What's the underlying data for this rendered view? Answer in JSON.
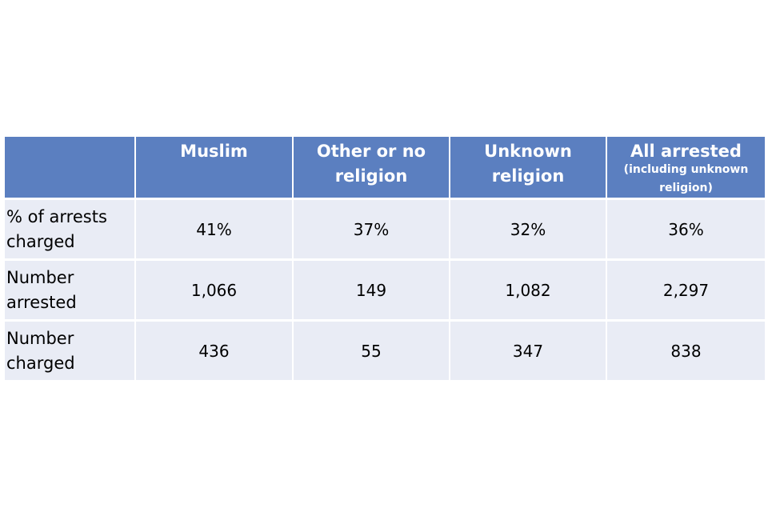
{
  "chart_data": {
    "type": "table",
    "title": "",
    "columns": [
      {
        "label": "Muslim",
        "note": ""
      },
      {
        "label": "Other or no religion",
        "note": ""
      },
      {
        "label": "Unknown religion",
        "note": ""
      },
      {
        "label": "All arrested",
        "note": "(including unknown religion)"
      }
    ],
    "rows": [
      {
        "label": "% of arrests charged",
        "values": [
          "41%",
          "37%",
          "32%",
          "36%"
        ]
      },
      {
        "label": "Number arrested",
        "values": [
          "1,066",
          "149",
          "1,082",
          "2,297"
        ]
      },
      {
        "label": "Number charged",
        "values": [
          "436",
          "55",
          "347",
          "838"
        ]
      }
    ]
  },
  "colors": {
    "header_bg": "#5b7fc0",
    "header_text": "#ffffff",
    "cell_bg": "#e9ecf5",
    "cell_text": "#000000"
  }
}
